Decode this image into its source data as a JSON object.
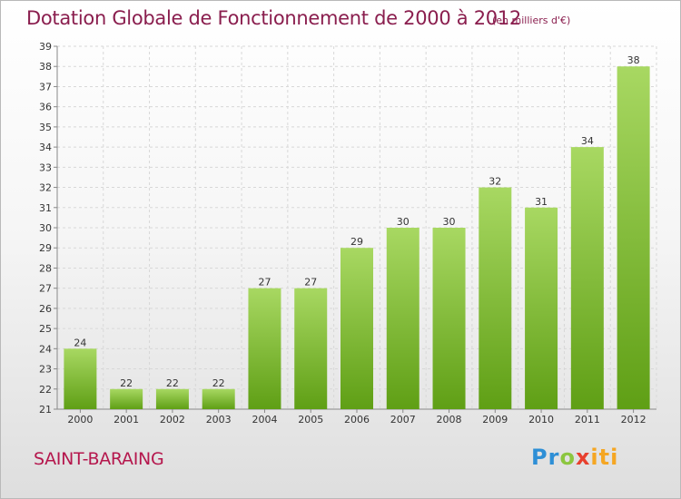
{
  "title": "Dotation Globale de Fonctionnement de 2000 à 2012",
  "subtitle": "(en milliers d'€)",
  "commune": "SAINT-BARAING",
  "logo": {
    "text": "Proxiti",
    "colors": [
      "#2e8fd6",
      "#8cc63f",
      "#e8402e",
      "#f5a623"
    ]
  },
  "colors": {
    "bar_top": "#a8d862",
    "bar_bottom": "#5f9f15",
    "title": "#8a1e4e",
    "commune": "#b5174d"
  },
  "chart_data": {
    "type": "bar",
    "title": "Dotation Globale de Fonctionnement de 2000 à 2012",
    "subtitle": "(en milliers d'€)",
    "xlabel": "",
    "ylabel": "",
    "ylim": [
      21,
      39
    ],
    "yticks": [
      21,
      22,
      23,
      24,
      25,
      26,
      27,
      28,
      29,
      30,
      31,
      32,
      33,
      34,
      35,
      36,
      37,
      38,
      39
    ],
    "grid": true,
    "categories": [
      "2000",
      "2001",
      "2002",
      "2003",
      "2004",
      "2005",
      "2006",
      "2007",
      "2008",
      "2009",
      "2010",
      "2011",
      "2012"
    ],
    "values": [
      24,
      22,
      22,
      22,
      27,
      27,
      29,
      30,
      30,
      32,
      31,
      34,
      38
    ]
  }
}
